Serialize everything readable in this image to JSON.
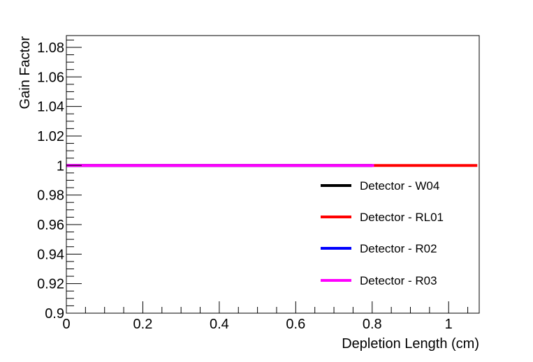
{
  "chart_data": {
    "type": "line",
    "title": "",
    "xlabel": "Depletion Length (cm)",
    "ylabel": "Gain Factor",
    "xlim": [
      0,
      1.08
    ],
    "ylim": [
      0.9,
      1.088
    ],
    "x_ticks": [
      {
        "value": 0,
        "label": "0"
      },
      {
        "value": 0.2,
        "label": "0.2"
      },
      {
        "value": 0.4,
        "label": "0.4"
      },
      {
        "value": 0.6,
        "label": "0.6"
      },
      {
        "value": 0.8,
        "label": "0.8"
      },
      {
        "value": 1,
        "label": "1"
      }
    ],
    "y_ticks": [
      {
        "value": 0.9,
        "label": "0.9"
      },
      {
        "value": 0.92,
        "label": "0.92"
      },
      {
        "value": 0.94,
        "label": "0.94"
      },
      {
        "value": 0.96,
        "label": "0.96"
      },
      {
        "value": 0.98,
        "label": "0.98"
      },
      {
        "value": 1,
        "label": "1"
      },
      {
        "value": 1.02,
        "label": "1.02"
      },
      {
        "value": 1.04,
        "label": "1.04"
      },
      {
        "value": 1.06,
        "label": "1.06"
      },
      {
        "value": 1.08,
        "label": "1.08"
      }
    ],
    "legend_position": "right",
    "series": [
      {
        "name": "Detector - W04",
        "color": "#000000",
        "x": [
          0,
          0.8
        ],
        "y": [
          1,
          1
        ]
      },
      {
        "name": "Detector - RL01",
        "color": "#ff0000",
        "x": [
          0,
          1.075
        ],
        "y": [
          1,
          1
        ]
      },
      {
        "name": "Detector - R02",
        "color": "#0000ff",
        "x": [
          0,
          0.8
        ],
        "y": [
          1,
          1
        ]
      },
      {
        "name": "Detector - R03",
        "color": "#ff00ff",
        "x": [
          0,
          0.805
        ],
        "y": [
          1,
          1
        ]
      }
    ]
  }
}
